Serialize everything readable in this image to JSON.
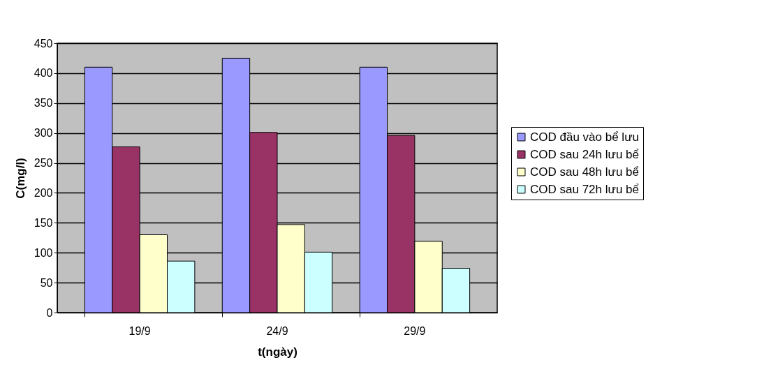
{
  "chart_data": {
    "type": "bar",
    "xlabel": "t(ngày)",
    "ylabel": "C(mg/l)",
    "categories": [
      "19/9",
      "24/9",
      "29/9"
    ],
    "series": [
      {
        "name": "COD đầu vào bể lưu",
        "color": "#9999ff",
        "values": [
          410,
          425,
          410
        ]
      },
      {
        "name": "COD sau 24h lưu bể",
        "color": "#993366",
        "values": [
          277,
          301,
          296
        ]
      },
      {
        "name": "COD sau 48h lưu bể",
        "color": "#ffffcc",
        "values": [
          130,
          147,
          119
        ]
      },
      {
        "name": "COD sau 72h lưu bể",
        "color": "#ccffff",
        "values": [
          86,
          101,
          74
        ]
      }
    ],
    "ylim": [
      0,
      450
    ],
    "yticks": [
      0,
      50,
      100,
      150,
      200,
      250,
      300,
      350,
      400,
      450
    ],
    "grid": "y",
    "legend": "right"
  }
}
